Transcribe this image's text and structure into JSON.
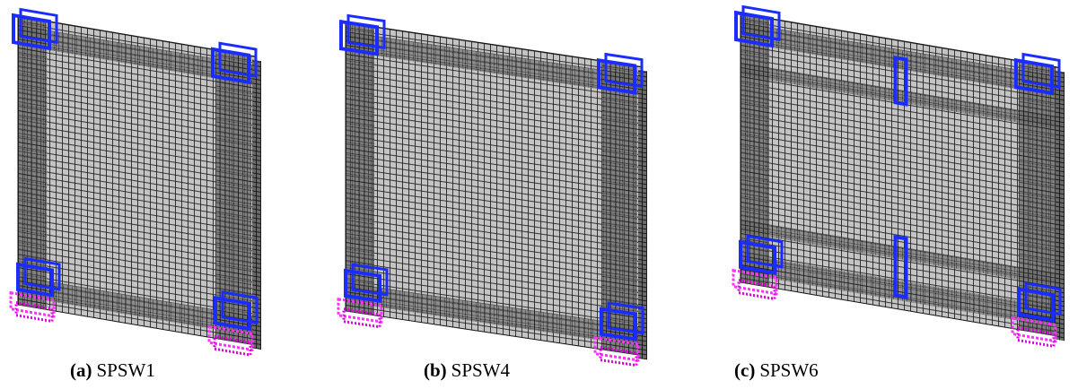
{
  "panels": [
    {
      "label": "(a)",
      "name": "SPSW1"
    },
    {
      "label": "(b)",
      "name": "SPSW4"
    },
    {
      "label": "(c)",
      "name": "SPSW6"
    }
  ]
}
